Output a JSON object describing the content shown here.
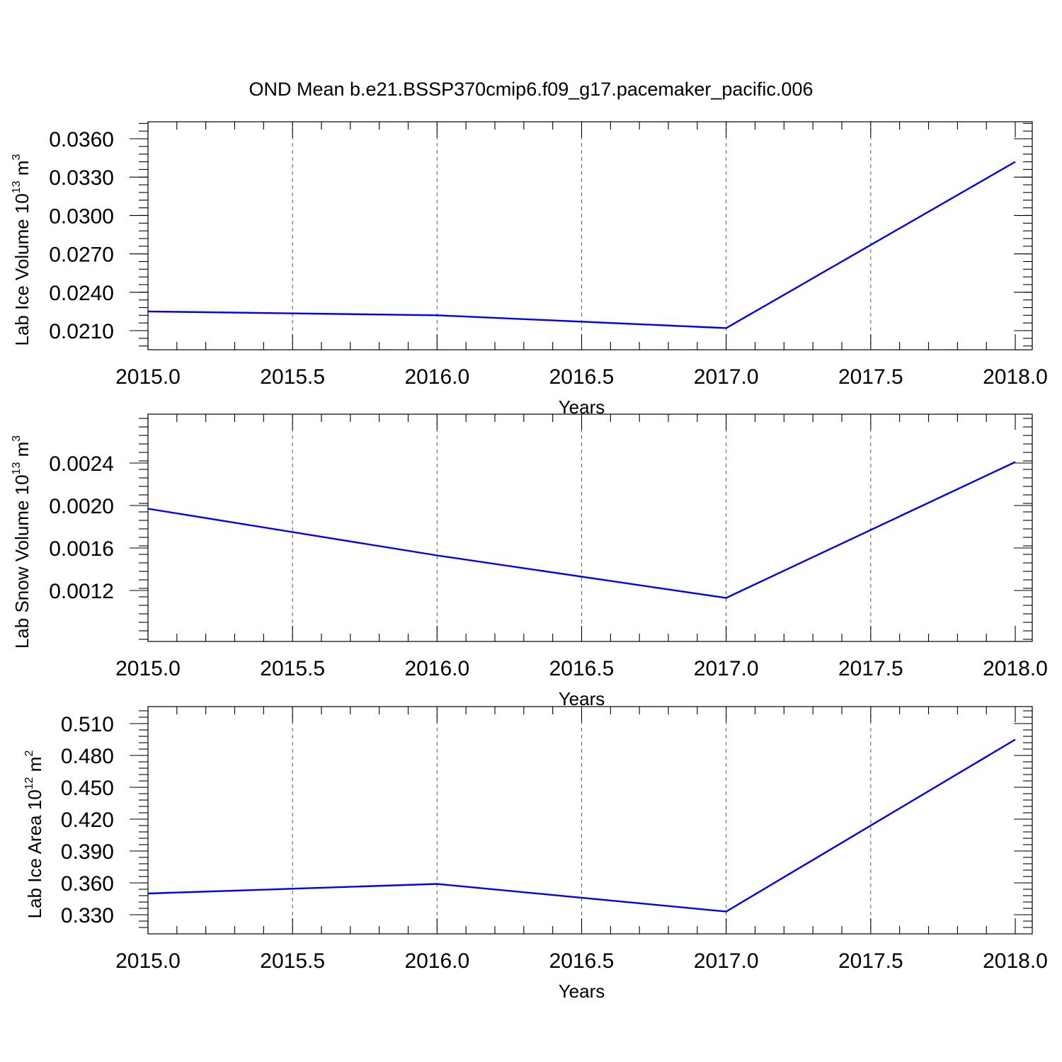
{
  "title": "OND Mean b.e21.BSSP370cmip6.f09_g17.pacemaker_pacific.006",
  "colors": {
    "line": "#0000ee",
    "axis": "#000000",
    "grid": "#555555"
  },
  "chart_data": [
    {
      "type": "line",
      "xlabel": "Years",
      "ylabel": {
        "text": "Lab Ice Volume 10",
        "exp": "13",
        "unit": " m",
        "unit_exp": "3"
      },
      "x": [
        2015,
        2016,
        2017,
        2018
      ],
      "series": [
        {
          "values": [
            0.0225,
            0.0222,
            0.0212,
            0.0342
          ]
        }
      ],
      "xlim": [
        2015.0,
        2018.0
      ],
      "ylim": [
        0.021,
        0.036
      ],
      "xticks": [
        "2015.0",
        "2015.5",
        "2016.0",
        "2016.5",
        "2017.0",
        "2017.5",
        "2018.0"
      ],
      "yticks": [
        "0.0210",
        "0.0240",
        "0.0270",
        "0.0300",
        "0.0330",
        "0.0360"
      ],
      "grid": "vertical dashed"
    },
    {
      "type": "line",
      "xlabel": "Years",
      "ylabel": {
        "text": "Lab Snow Volume 10",
        "exp": "13",
        "unit": " m",
        "unit_exp": "3"
      },
      "x": [
        2015,
        2016,
        2017,
        2018
      ],
      "series": [
        {
          "values": [
            0.00197,
            0.00153,
            0.00113,
            0.00241
          ]
        }
      ],
      "xlim": [
        2015.0,
        2018.0
      ],
      "ylim": [
        0.0009,
        0.0027
      ],
      "xticks": [
        "2015.0",
        "2015.5",
        "2016.0",
        "2016.5",
        "2017.0",
        "2017.5",
        "2018.0"
      ],
      "yticks": [
        "0.0012",
        "0.0016",
        "0.0020",
        "0.0024"
      ],
      "grid": "vertical dashed"
    },
    {
      "type": "line",
      "xlabel": "Years",
      "ylabel": {
        "text": "Lab Ice Area 10",
        "exp": "12",
        "unit": " m",
        "unit_exp": "2"
      },
      "x": [
        2015,
        2016,
        2017,
        2018
      ],
      "series": [
        {
          "values": [
            0.35,
            0.359,
            0.333,
            0.495
          ]
        }
      ],
      "xlim": [
        2015.0,
        2018.0
      ],
      "ylim": [
        0.33,
        0.51
      ],
      "xticks": [
        "2015.0",
        "2015.5",
        "2016.0",
        "2016.5",
        "2017.0",
        "2017.5",
        "2018.0"
      ],
      "yticks": [
        "0.330",
        "0.360",
        "0.390",
        "0.420",
        "0.450",
        "0.480",
        "0.510"
      ],
      "grid": "vertical dashed"
    }
  ]
}
